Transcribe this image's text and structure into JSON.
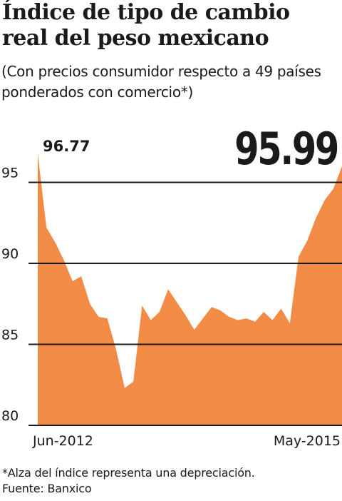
{
  "header": {
    "title": "Índice de tipo de cambio real del peso mexicano",
    "subtitle": "(Con precios consumidor respecto a 49 países ponderados con comercio*)"
  },
  "footer": {
    "note": "*Alza del índice representa una depreciación.",
    "source": "Fuente: Banxico"
  },
  "colors": {
    "area": "#f28b46",
    "gridline": "#1a1a1a",
    "text": "#1a1a1a"
  },
  "chart_data": {
    "type": "area",
    "title": "Índice de tipo de cambio real del peso mexicano",
    "subtitle": "(Con precios consumidor respecto a 49 países ponderados con comercio*)",
    "xlabel": "",
    "ylabel": "",
    "x_tick_labels": [
      "Jun-2012",
      "May-2015"
    ],
    "y_ticks": [
      80,
      85,
      90,
      95
    ],
    "ylim": [
      80,
      97.5
    ],
    "grid": true,
    "legend": "none",
    "annotations": {
      "first_value": "96.77",
      "last_value": "95.99"
    },
    "series": [
      {
        "values": [
          96.77,
          92.2,
          91.3,
          90.2,
          88.9,
          89.2,
          87.5,
          86.7,
          86.6,
          84.7,
          82.3,
          82.7,
          87.4,
          86.5,
          87.0,
          88.4,
          87.6,
          86.8,
          85.9,
          86.6,
          87.3,
          87.1,
          86.7,
          86.5,
          86.6,
          86.4,
          87.0,
          86.5,
          87.2,
          86.3,
          90.4,
          91.4,
          92.8,
          93.9,
          94.6,
          95.99
        ]
      }
    ]
  }
}
